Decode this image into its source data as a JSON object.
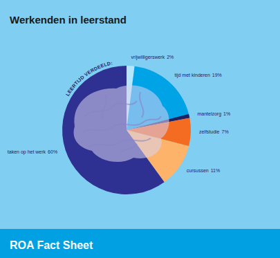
{
  "chart_data": {
    "type": "pie",
    "title": "Werkenden in leerstand",
    "annotation": "LEERTIJD VERDEELD:",
    "source": "ROA Fact Sheet",
    "categories": [
      "vrijwilligerswerk",
      "tijd met kinderen",
      "mantelzorg",
      "zelfstudie",
      "cursussen",
      "taken op het werk"
    ],
    "values": [
      2,
      19,
      1,
      7,
      11,
      60
    ],
    "value_labels": [
      "2%",
      "19%",
      "1%",
      "7%",
      "11%",
      "60%"
    ],
    "colors": [
      "#b5e6fb",
      "#00a3e6",
      "#1d2366",
      "#f36c21",
      "#fdb46a",
      "#2e3192"
    ],
    "data_labels": true
  }
}
